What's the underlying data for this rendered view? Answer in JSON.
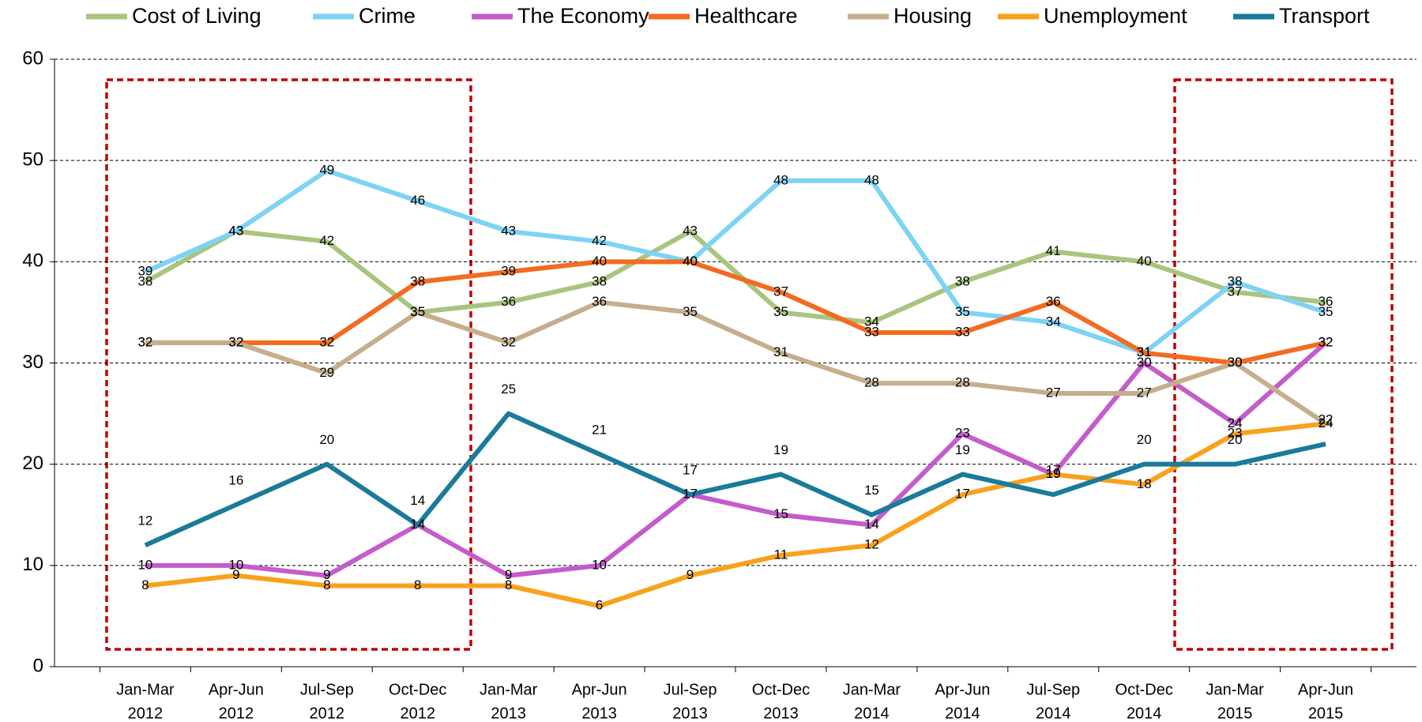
{
  "chart_data": {
    "type": "line",
    "categories": [
      [
        "Jan-Mar",
        "2012"
      ],
      [
        "Apr-Jun",
        "2012"
      ],
      [
        "Jul-Sep",
        "2012"
      ],
      [
        "Oct-Dec",
        "2012"
      ],
      [
        "Jan-Mar",
        "2013"
      ],
      [
        "Apr-Jun",
        "2013"
      ],
      [
        "Jul-Sep",
        "2013"
      ],
      [
        "Oct-Dec",
        "2013"
      ],
      [
        "Jan-Mar",
        "2014"
      ],
      [
        "Apr-Jun",
        "2014"
      ],
      [
        "Jul-Sep",
        "2014"
      ],
      [
        "Oct-Dec",
        "2014"
      ],
      [
        "Jan-Mar",
        "2015"
      ],
      [
        "Apr-Jun",
        "2015"
      ]
    ],
    "series": [
      {
        "name": "Cost of Living",
        "color": "#a9c47f",
        "values": [
          38,
          43,
          42,
          35,
          36,
          38,
          43,
          35,
          34,
          38,
          41,
          40,
          37,
          36
        ]
      },
      {
        "name": "Crime",
        "color": "#7dd3f5",
        "values": [
          39,
          43,
          49,
          46,
          43,
          42,
          40,
          48,
          48,
          35,
          34,
          31,
          38,
          35
        ]
      },
      {
        "name": "The Economy",
        "color": "#c45ccc",
        "values": [
          10,
          10,
          9,
          14,
          9,
          10,
          17,
          15,
          14,
          23,
          19,
          30,
          24,
          32
        ]
      },
      {
        "name": "Healthcare",
        "color": "#f26b21",
        "values": [
          32,
          32,
          32,
          38,
          39,
          40,
          40,
          37,
          33,
          33,
          36,
          31,
          30,
          32
        ]
      },
      {
        "name": "Housing",
        "color": "#c4ae8e",
        "values": [
          32,
          32,
          29,
          35,
          32,
          36,
          35,
          31,
          28,
          28,
          27,
          27,
          30,
          24
        ]
      },
      {
        "name": "Unemployment",
        "color": "#f8a21c",
        "values": [
          8,
          9,
          8,
          8,
          8,
          6,
          9,
          11,
          12,
          17,
          19,
          18,
          23,
          24
        ]
      },
      {
        "name": "Transport",
        "color": "#1a7a9a",
        "values": [
          12,
          16,
          20,
          14,
          25,
          21,
          17,
          19,
          15,
          19,
          17,
          20,
          20,
          22
        ]
      }
    ],
    "ylim": [
      0,
      60
    ],
    "yticks": [
      0,
      10,
      20,
      30,
      40,
      50,
      60
    ],
    "grid": true,
    "legend": "top"
  }
}
